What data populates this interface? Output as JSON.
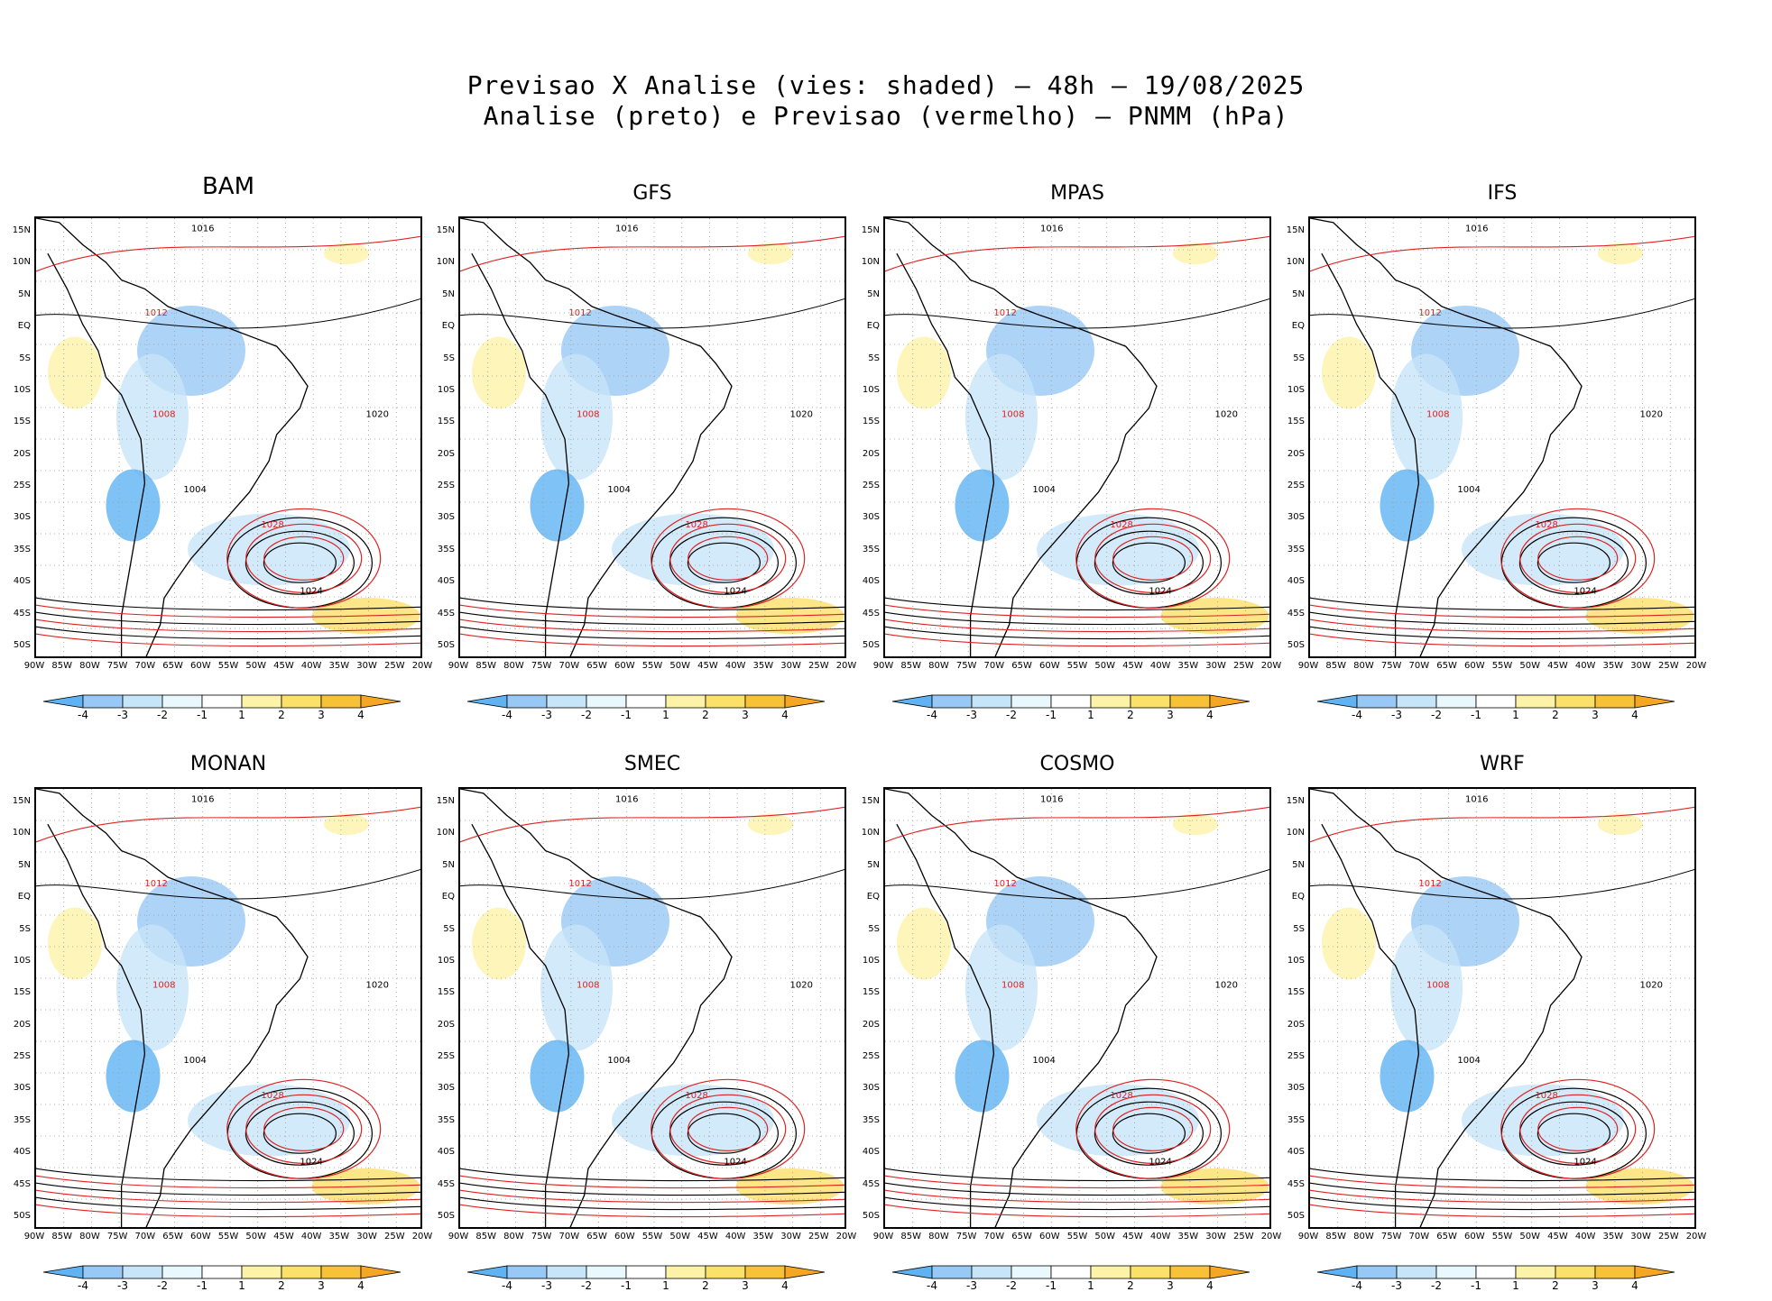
{
  "title_line1": "Previsao X Analise (vies: shaded) – 48h – 19/08/2025",
  "title_line2": "Analise (preto) e Previsao (vermelho) – PNMM (hPa)",
  "lat_labels": [
    "15N",
    "10N",
    "5N",
    "EQ",
    "5S",
    "10S",
    "15S",
    "20S",
    "25S",
    "30S",
    "35S",
    "40S",
    "45S",
    "50S"
  ],
  "lon_labels": [
    "90W",
    "85W",
    "80W",
    "75W",
    "70W",
    "65W",
    "60W",
    "55W",
    "50W",
    "45W",
    "40W",
    "35W",
    "30W",
    "25W",
    "20W"
  ],
  "colorbar": {
    "labels": [
      "-4",
      "-3",
      "-2",
      "-1",
      "1",
      "2",
      "3",
      "4"
    ],
    "colors": [
      "#5fb3f2",
      "#98c8f5",
      "#c7e5f8",
      "#e8f8fd",
      "#ffffff",
      "#fdf3a8",
      "#fbe06a",
      "#f8c238",
      "#f5a623"
    ]
  },
  "contour_colors": {
    "analysis": "#000000",
    "forecast": "#dd2222"
  },
  "panels": [
    {
      "name": "BAM",
      "labels": [
        "1016",
        "1012",
        "1020",
        "1028",
        "1024",
        "1008",
        "1004"
      ]
    },
    {
      "name": "GFS",
      "labels": [
        "1016",
        "1012",
        "1020",
        "1028",
        "1024",
        "1008",
        "1004"
      ]
    },
    {
      "name": "MPAS",
      "labels": [
        "1016",
        "1012",
        "1020",
        "1028",
        "1024",
        "1008",
        "1004"
      ]
    },
    {
      "name": "IFS",
      "labels": [
        "1016",
        "1012",
        "1020",
        "1028",
        "1024",
        "1008",
        "1004"
      ]
    },
    {
      "name": "MONAN",
      "labels": [
        "1016",
        "1012",
        "1020",
        "1028",
        "1024",
        "1008",
        "1004"
      ]
    },
    {
      "name": "SMEC",
      "labels": [
        "1016",
        "1012",
        "1020",
        "1028",
        "1024",
        "1008",
        "1004"
      ]
    },
    {
      "name": "COSMO",
      "labels": [
        "1016",
        "1012",
        "1020",
        "1028",
        "1024",
        "1008",
        "1004"
      ]
    },
    {
      "name": "WRF",
      "labels": [
        "1016",
        "1012",
        "1020",
        "1028",
        "1024",
        "1008",
        "1004"
      ]
    }
  ]
}
